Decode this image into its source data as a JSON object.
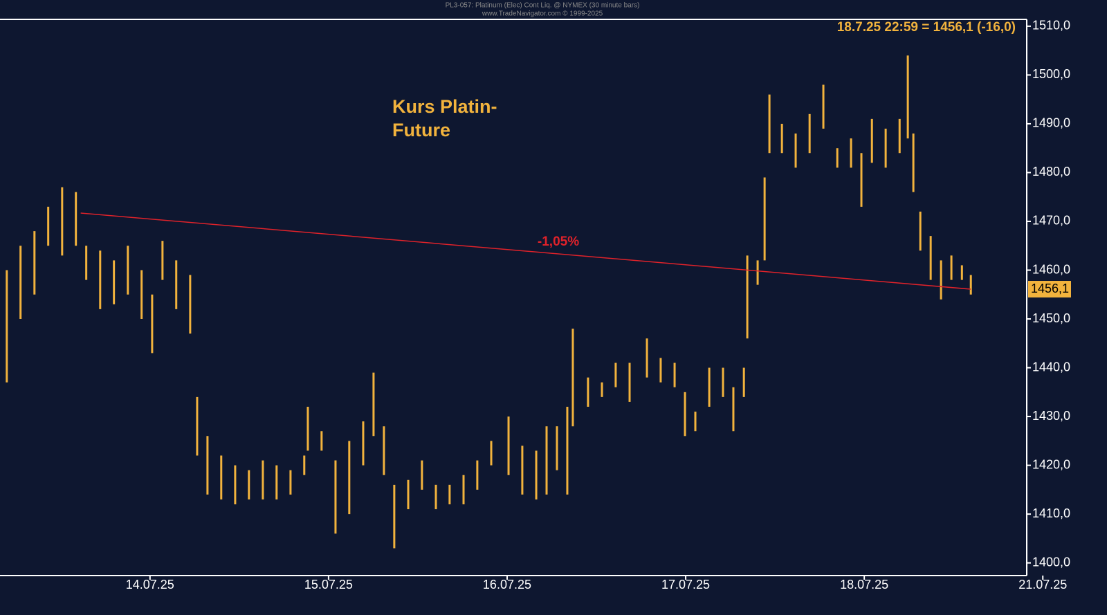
{
  "chart_data": {
    "type": "range-bar",
    "title": "PL3-057: Platinum (Elec) Cont Liq. @ NYMEX (30 minute bars)",
    "subtitle": "www.TradeNavigator.com © 1999-2025",
    "annotation": "Kurs Platin-\nFuture",
    "last_quote": "18.7.25 22:59 = 1456,1 (-16,0)",
    "last_price": {
      "value": 1456.1,
      "label": "1456,1"
    },
    "color": "#f2b33d",
    "x": [
      -0.802,
      -0.725,
      -0.647,
      -0.57,
      -0.492,
      -0.415,
      -0.357,
      -0.279,
      -0.202,
      -0.124,
      -0.047,
      0.012,
      0.07,
      0.147,
      0.225,
      0.264,
      0.322,
      0.399,
      0.477,
      0.554,
      0.632,
      0.709,
      0.787,
      0.864,
      0.884,
      0.961,
      1.039,
      1.116,
      1.194,
      1.252,
      1.31,
      1.368,
      1.446,
      1.523,
      1.601,
      1.678,
      1.756,
      1.833,
      1.911,
      2.008,
      2.085,
      2.163,
      2.221,
      2.279,
      2.337,
      2.368,
      2.453,
      2.531,
      2.608,
      2.686,
      2.783,
      2.86,
      2.938,
      2.996,
      3.054,
      3.132,
      3.209,
      3.267,
      3.326,
      3.345,
      3.403,
      3.442,
      3.469,
      3.539,
      3.616,
      3.694,
      3.771,
      3.849,
      3.926,
      3.984,
      4.043,
      4.12,
      4.198,
      4.244,
      4.275,
      4.314,
      4.372,
      4.43,
      4.488,
      4.547,
      4.597
    ],
    "high": [
      1460,
      1465,
      1468,
      1473,
      1477,
      1476,
      1465,
      1464,
      1462,
      1465,
      1460,
      1455,
      1466,
      1462,
      1459,
      1434,
      1426,
      1422,
      1420,
      1419,
      1421,
      1420,
      1419,
      1422,
      1432,
      1427,
      1421,
      1425,
      1429,
      1439,
      1428,
      1416,
      1417,
      1421,
      1416,
      1416,
      1418,
      1421,
      1425,
      1430,
      1424,
      1423,
      1428,
      1428,
      1432,
      1448,
      1438,
      1437,
      1441,
      1441,
      1446,
      1442,
      1441,
      1435,
      1431,
      1440,
      1440,
      1436,
      1440,
      1463,
      1462,
      1479,
      1496,
      1490,
      1488,
      1492,
      1498,
      1485,
      1487,
      1484,
      1491,
      1489,
      1491,
      1504,
      1488,
      1472,
      1467,
      1462,
      1463,
      1461,
      1459
    ],
    "low": [
      1437,
      1450,
      1455,
      1465,
      1463,
      1465,
      1458,
      1452,
      1453,
      1455,
      1450,
      1443,
      1458,
      1452,
      1447,
      1422,
      1414,
      1413,
      1412,
      1413,
      1413,
      1413,
      1414,
      1418,
      1423,
      1423,
      1406,
      1410,
      1420,
      1426,
      1418,
      1403,
      1411,
      1415,
      1411,
      1412,
      1412,
      1415,
      1420,
      1418,
      1414,
      1413,
      1414,
      1419,
      1414,
      1428,
      1432,
      1434,
      1436,
      1433,
      1438,
      1437,
      1436,
      1426,
      1427,
      1432,
      1434,
      1427,
      1434,
      1446,
      1457,
      1462,
      1484,
      1484,
      1481,
      1484,
      1489,
      1481,
      1481,
      1473,
      1482,
      1481,
      1484,
      1487,
      1476,
      1464,
      1458,
      1454,
      1458,
      1458,
      1455
    ],
    "trendline": {
      "x": [
        -0.388,
        4.597
      ],
      "y": [
        1471.7,
        1456.1
      ],
      "color": "#e0222a",
      "label": "-1,05%"
    },
    "xlim": [
      -0.84,
      4.91
    ],
    "xticks": [
      {
        "value": 0,
        "label": "14.07.25"
      },
      {
        "value": 1,
        "label": "15.07.25"
      },
      {
        "value": 2,
        "label": "16.07.25"
      },
      {
        "value": 3,
        "label": "17.07.25"
      },
      {
        "value": 4,
        "label": "18.07.25"
      },
      {
        "value": 5,
        "label": "21.07.25"
      }
    ],
    "ylim": [
      1397.4,
      1511.4
    ],
    "yticks": [
      {
        "value": 1400,
        "label": "1400,0"
      },
      {
        "value": 1410,
        "label": "1410,0"
      },
      {
        "value": 1420,
        "label": "1420,0"
      },
      {
        "value": 1430,
        "label": "1430,0"
      },
      {
        "value": 1440,
        "label": "1440,0"
      },
      {
        "value": 1450,
        "label": "1450,0"
      },
      {
        "value": 1460,
        "label": "1460,0"
      },
      {
        "value": 1470,
        "label": "1470,0"
      },
      {
        "value": 1480,
        "label": "1480,0"
      },
      {
        "value": 1490,
        "label": "1490,0"
      },
      {
        "value": 1500,
        "label": "1500,0"
      },
      {
        "value": 1510,
        "label": "1510,0"
      }
    ]
  }
}
